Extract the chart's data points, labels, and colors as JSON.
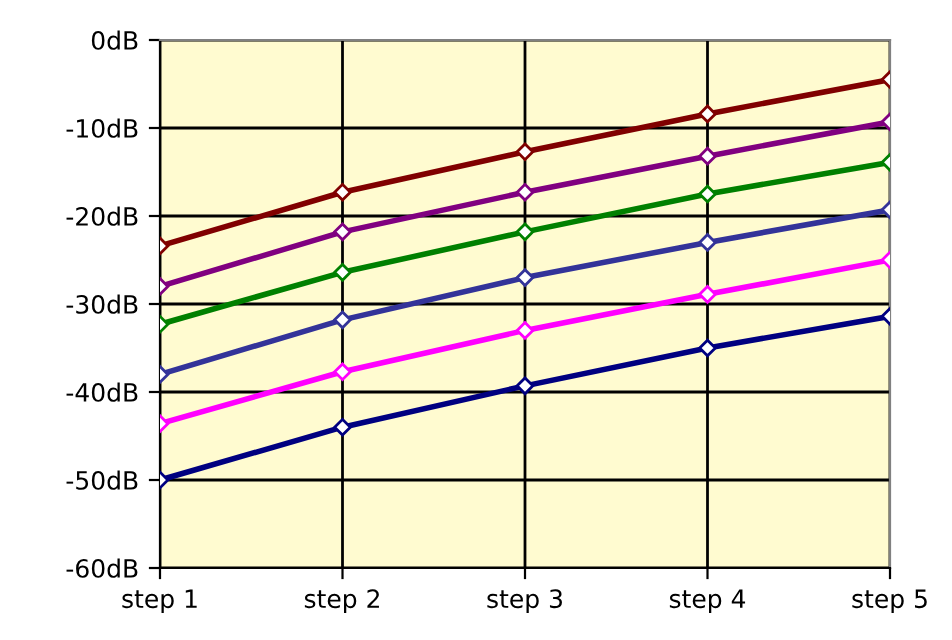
{
  "chart_data": {
    "type": "line",
    "categories": [
      "step 1",
      "step 2",
      "step 3",
      "step 4",
      "step 5"
    ],
    "series": [
      {
        "color": "#800000",
        "values": [
          -23.4,
          -17.3,
          -12.7,
          -8.4,
          -4.5
        ]
      },
      {
        "color": "#800080",
        "values": [
          -28,
          -21.8,
          -17.3,
          -13.2,
          -9.3
        ]
      },
      {
        "color": "#008000",
        "values": [
          -32.3,
          -26.4,
          -21.8,
          -17.5,
          -13.9
        ]
      },
      {
        "color": "#333399",
        "values": [
          -38,
          -31.8,
          -27,
          -23,
          -19.3
        ]
      },
      {
        "color": "#ff00ff",
        "values": [
          -43.6,
          -37.7,
          -33,
          -28.9,
          -25
        ]
      },
      {
        "color": "#000080",
        "values": [
          -50,
          -44,
          -39.3,
          -35,
          -31.4
        ]
      }
    ],
    "ylim": [
      -60,
      0
    ],
    "yticks": [
      {
        "value": 0,
        "label": "0dB"
      },
      {
        "value": -10,
        "label": "-10dB"
      },
      {
        "value": -20,
        "label": "-20dB"
      },
      {
        "value": -30,
        "label": "-30dB"
      },
      {
        "value": -40,
        "label": "-40dB"
      },
      {
        "value": -50,
        "label": "-50dB"
      },
      {
        "value": -60,
        "label": "-60dB"
      }
    ],
    "grid": true,
    "marker": "diamond",
    "line_style": "solid",
    "legend": false
  }
}
